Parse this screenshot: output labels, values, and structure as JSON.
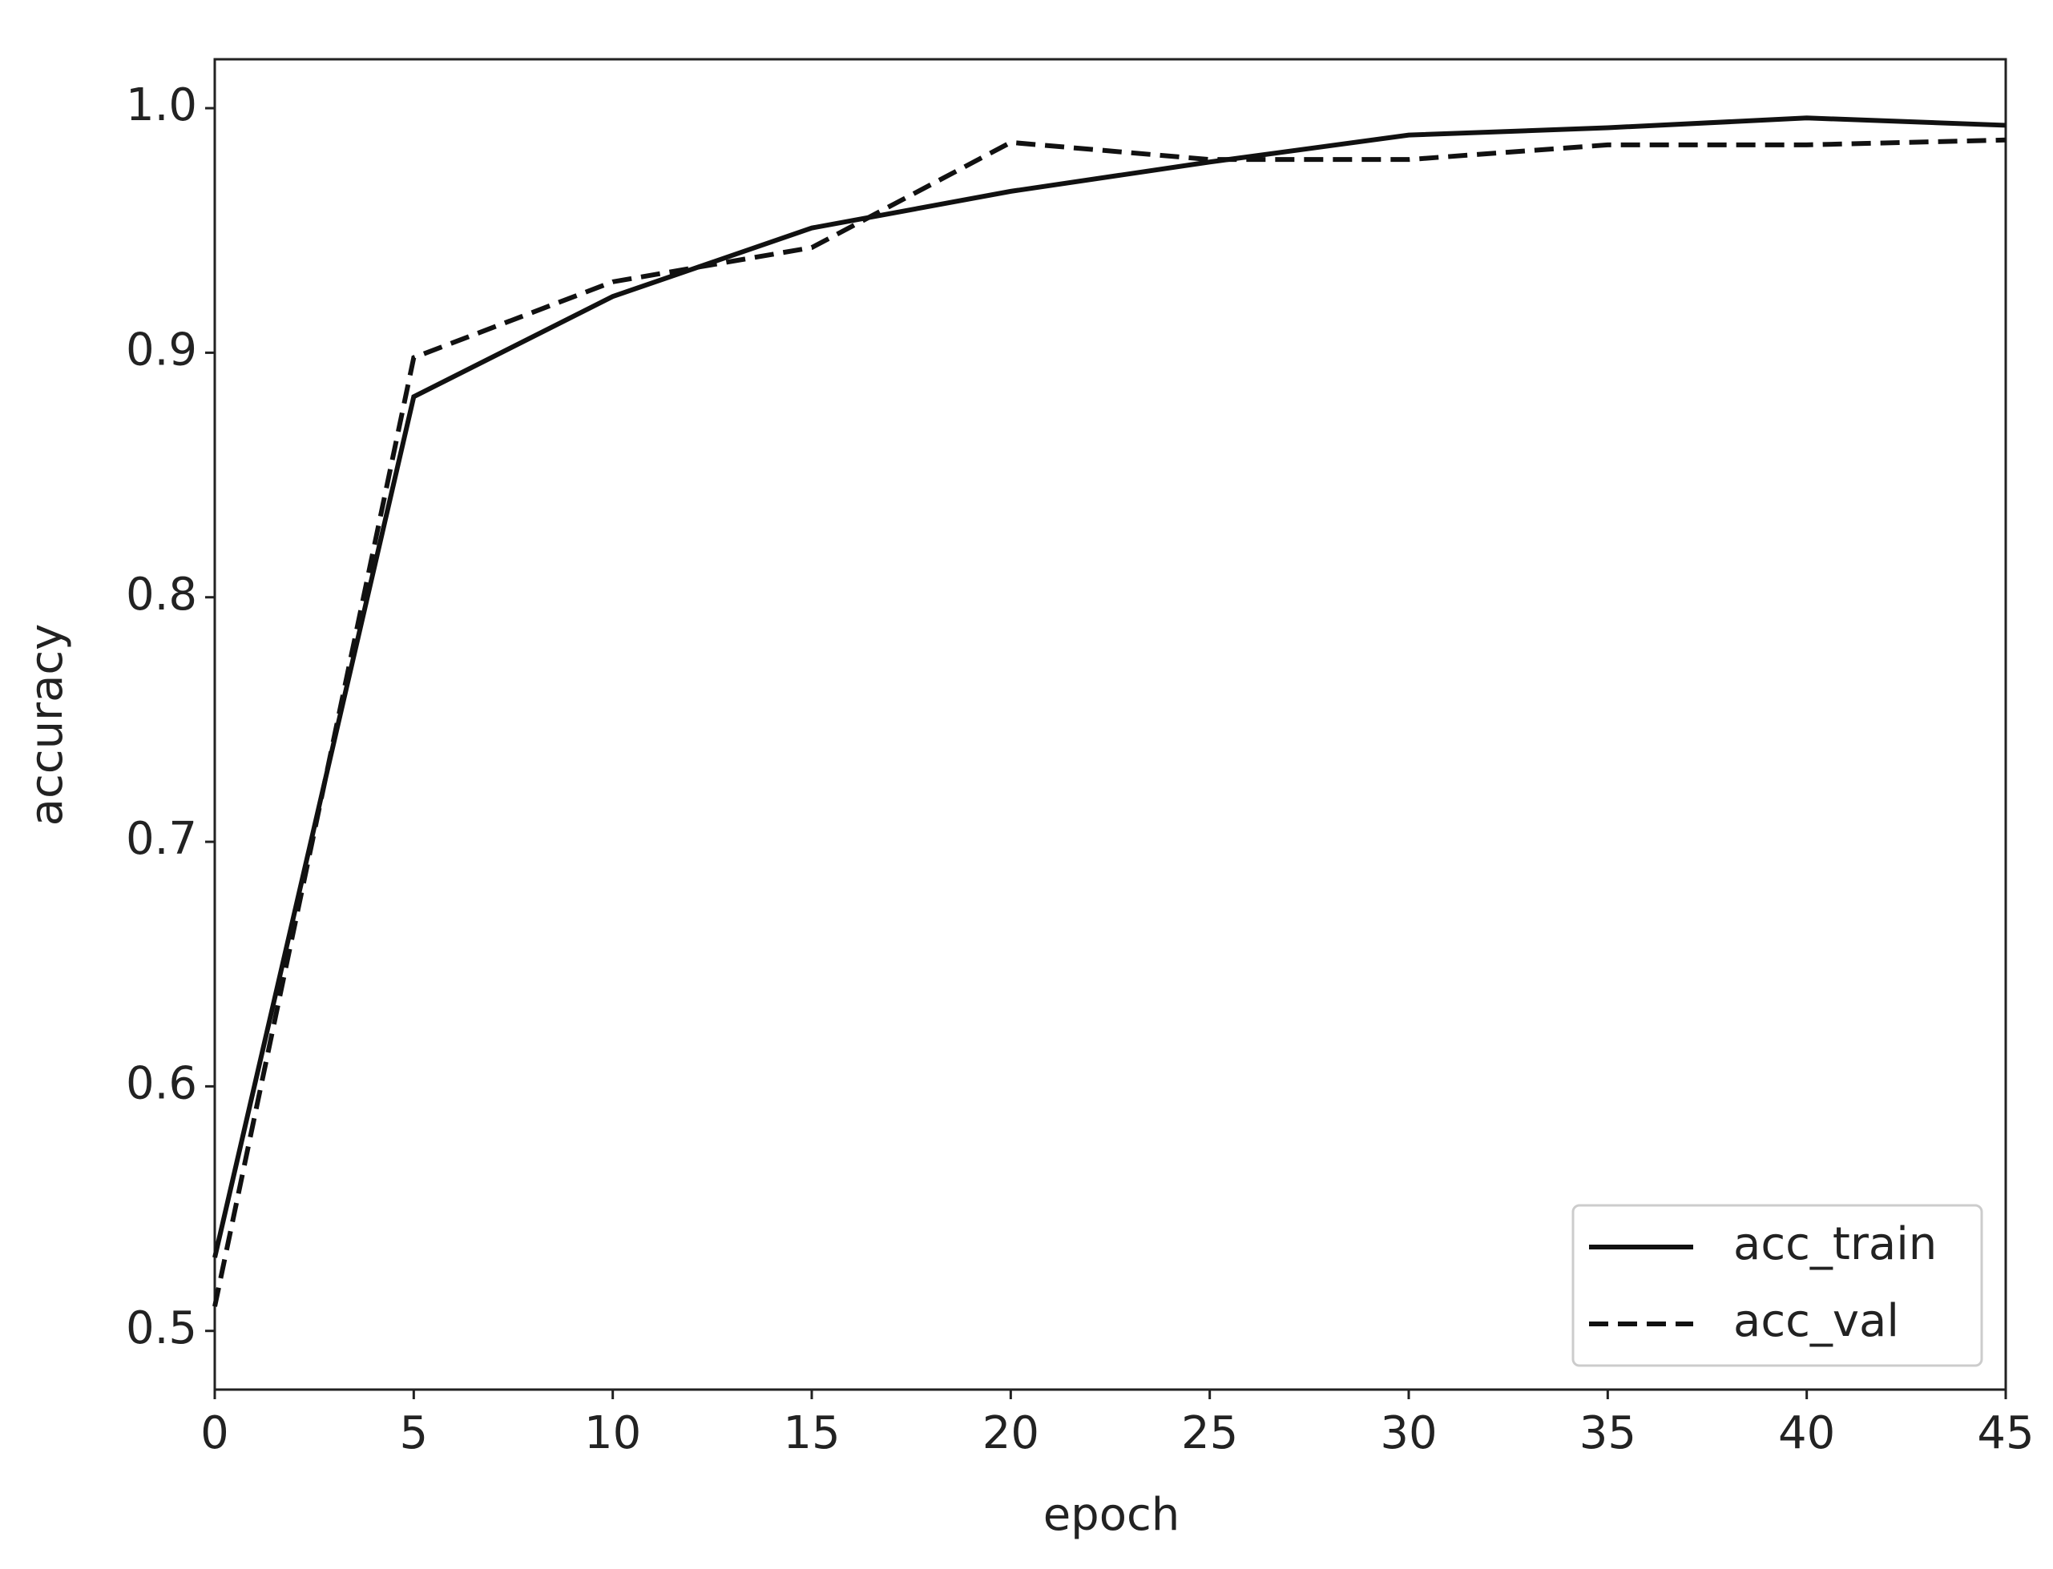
{
  "chart_data": {
    "type": "line",
    "x_label": "epoch",
    "y_label": "accuracy",
    "x": [
      0,
      5,
      10,
      15,
      20,
      25,
      30,
      35,
      40,
      45
    ],
    "series": [
      {
        "name": "acc_train",
        "color": "#111111",
        "dash": "solid",
        "values": [
          0.53,
          0.882,
          0.923,
          0.951,
          0.966,
          0.978,
          0.989,
          0.992,
          0.996,
          0.993
        ]
      },
      {
        "name": "acc_val",
        "color": "#111111",
        "dash": "dashed",
        "values": [
          0.51,
          0.898,
          0.929,
          0.943,
          0.986,
          0.979,
          0.979,
          0.985,
          0.985,
          0.987
        ]
      }
    ],
    "xlim": [
      0,
      45
    ],
    "xticks": [
      0,
      5,
      10,
      15,
      20,
      25,
      30,
      35,
      40,
      45
    ],
    "ylim": [
      0.476,
      1.02
    ],
    "yticks": [
      0.5,
      0.6,
      0.7,
      0.8,
      0.9,
      {
        "value": 1,
        "label": "1.0"
      }
    ],
    "grid": false,
    "legend": "lower right"
  }
}
